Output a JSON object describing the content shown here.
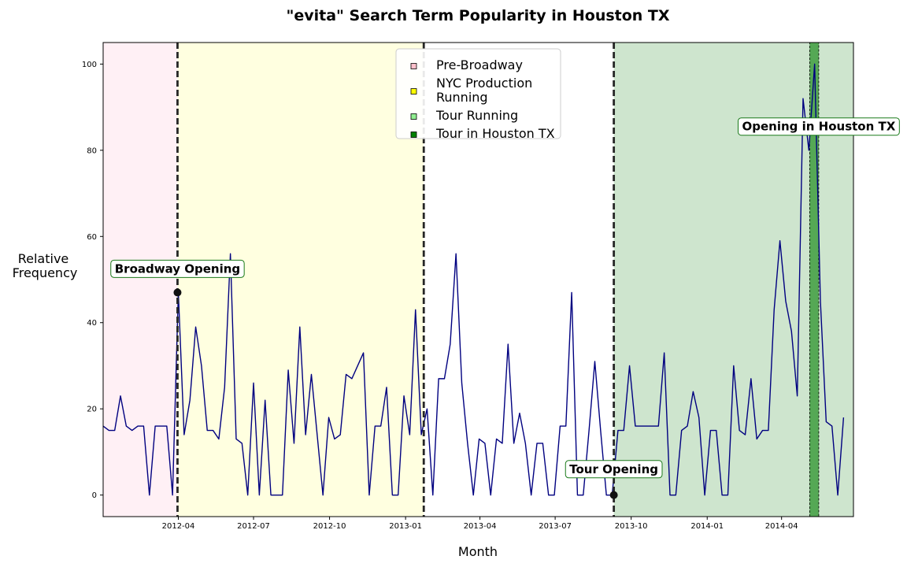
{
  "chart_data": {
    "type": "line",
    "title": "\"evita\" Search Term Popularity in Houston TX",
    "xlabel": "Month",
    "ylabel": [
      "Relative",
      "Frequency"
    ],
    "ylim": [
      -5,
      105
    ],
    "xlim": [
      "2012-01-01",
      "2014-06-27"
    ],
    "yticks": [
      0,
      20,
      40,
      60,
      80,
      100
    ],
    "xticks": [
      {
        "date": "2012-04-01",
        "label": "2012-04"
      },
      {
        "date": "2012-07-01",
        "label": "2012-07"
      },
      {
        "date": "2012-10-01",
        "label": "2012-10"
      },
      {
        "date": "2013-01-01",
        "label": "2013-01"
      },
      {
        "date": "2013-04-01",
        "label": "2013-04"
      },
      {
        "date": "2013-07-01",
        "label": "2013-07"
      },
      {
        "date": "2013-10-01",
        "label": "2013-10"
      },
      {
        "date": "2014-01-01",
        "label": "2014-01"
      },
      {
        "date": "2014-04-01",
        "label": "2014-04"
      }
    ],
    "line_color": "#000080",
    "series": [
      {
        "values": [
          [
            "2012-01-01",
            16
          ],
          [
            "2012-01-08",
            15
          ],
          [
            "2012-01-15",
            15
          ],
          [
            "2012-01-22",
            23
          ],
          [
            "2012-01-29",
            16
          ],
          [
            "2012-02-05",
            15
          ],
          [
            "2012-02-12",
            16
          ],
          [
            "2012-02-19",
            16
          ],
          [
            "2012-02-26",
            0
          ],
          [
            "2012-03-04",
            16
          ],
          [
            "2012-03-11",
            16
          ],
          [
            "2012-03-18",
            16
          ],
          [
            "2012-03-25",
            0
          ],
          [
            "2012-04-01",
            47
          ],
          [
            "2012-04-08",
            14
          ],
          [
            "2012-04-15",
            22
          ],
          [
            "2012-04-22",
            39
          ],
          [
            "2012-04-29",
            30
          ],
          [
            "2012-05-06",
            15
          ],
          [
            "2012-05-13",
            15
          ],
          [
            "2012-05-20",
            13
          ],
          [
            "2012-05-27",
            25
          ],
          [
            "2012-06-03",
            56
          ],
          [
            "2012-06-10",
            13
          ],
          [
            "2012-06-17",
            12
          ],
          [
            "2012-06-24",
            0
          ],
          [
            "2012-07-01",
            26
          ],
          [
            "2012-07-08",
            0
          ],
          [
            "2012-07-15",
            22
          ],
          [
            "2012-07-22",
            0
          ],
          [
            "2012-07-29",
            0
          ],
          [
            "2012-08-05",
            0
          ],
          [
            "2012-08-12",
            29
          ],
          [
            "2012-08-19",
            12
          ],
          [
            "2012-08-26",
            39
          ],
          [
            "2012-09-02",
            14
          ],
          [
            "2012-09-09",
            28
          ],
          [
            "2012-09-16",
            14
          ],
          [
            "2012-09-23",
            0
          ],
          [
            "2012-09-30",
            18
          ],
          [
            "2012-10-07",
            13
          ],
          [
            "2012-10-14",
            14
          ],
          [
            "2012-10-21",
            28
          ],
          [
            "2012-10-28",
            27
          ],
          [
            "2012-11-04",
            30
          ],
          [
            "2012-11-11",
            33
          ],
          [
            "2012-11-18",
            0
          ],
          [
            "2012-11-25",
            16
          ],
          [
            "2012-12-02",
            16
          ],
          [
            "2012-12-09",
            25
          ],
          [
            "2012-12-16",
            0
          ],
          [
            "2012-12-23",
            0
          ],
          [
            "2012-12-30",
            23
          ],
          [
            "2013-01-06",
            14
          ],
          [
            "2013-01-13",
            43
          ],
          [
            "2013-01-20",
            14
          ],
          [
            "2013-01-27",
            20
          ],
          [
            "2013-02-03",
            0
          ],
          [
            "2013-02-10",
            27
          ],
          [
            "2013-02-17",
            27
          ],
          [
            "2013-02-24",
            35
          ],
          [
            "2013-03-03",
            56
          ],
          [
            "2013-03-10",
            26
          ],
          [
            "2013-03-17",
            12
          ],
          [
            "2013-03-24",
            0
          ],
          [
            "2013-03-31",
            13
          ],
          [
            "2013-04-07",
            12
          ],
          [
            "2013-04-14",
            0
          ],
          [
            "2013-04-21",
            13
          ],
          [
            "2013-04-28",
            12
          ],
          [
            "2013-05-05",
            35
          ],
          [
            "2013-05-12",
            12
          ],
          [
            "2013-05-19",
            19
          ],
          [
            "2013-05-26",
            12
          ],
          [
            "2013-06-02",
            0
          ],
          [
            "2013-06-09",
            12
          ],
          [
            "2013-06-16",
            12
          ],
          [
            "2013-06-23",
            0
          ],
          [
            "2013-06-30",
            0
          ],
          [
            "2013-07-07",
            16
          ],
          [
            "2013-07-14",
            16
          ],
          [
            "2013-07-21",
            47
          ],
          [
            "2013-07-28",
            0
          ],
          [
            "2013-08-04",
            0
          ],
          [
            "2013-08-11",
            15
          ],
          [
            "2013-08-18",
            31
          ],
          [
            "2013-08-25",
            15
          ],
          [
            "2013-09-01",
            0
          ],
          [
            "2013-09-08",
            0
          ],
          [
            "2013-09-15",
            15
          ],
          [
            "2013-09-22",
            15
          ],
          [
            "2013-09-29",
            30
          ],
          [
            "2013-10-06",
            16
          ],
          [
            "2013-10-13",
            16
          ],
          [
            "2013-10-20",
            16
          ],
          [
            "2013-10-27",
            16
          ],
          [
            "2013-11-03",
            16
          ],
          [
            "2013-11-10",
            33
          ],
          [
            "2013-11-17",
            0
          ],
          [
            "2013-11-24",
            0
          ],
          [
            "2013-12-01",
            15
          ],
          [
            "2013-12-08",
            16
          ],
          [
            "2013-12-15",
            24
          ],
          [
            "2013-12-22",
            18
          ],
          [
            "2013-12-29",
            0
          ],
          [
            "2014-01-05",
            15
          ],
          [
            "2014-01-12",
            15
          ],
          [
            "2014-01-19",
            0
          ],
          [
            "2014-01-26",
            0
          ],
          [
            "2014-02-02",
            30
          ],
          [
            "2014-02-09",
            15
          ],
          [
            "2014-02-16",
            14
          ],
          [
            "2014-02-23",
            27
          ],
          [
            "2014-03-02",
            13
          ],
          [
            "2014-03-09",
            15
          ],
          [
            "2014-03-16",
            15
          ],
          [
            "2014-03-23",
            43
          ],
          [
            "2014-03-30",
            59
          ],
          [
            "2014-04-06",
            45
          ],
          [
            "2014-04-13",
            38
          ],
          [
            "2014-04-20",
            23
          ],
          [
            "2014-04-27",
            92
          ],
          [
            "2014-05-04",
            80
          ],
          [
            "2014-05-11",
            100
          ],
          [
            "2014-05-18",
            45
          ],
          [
            "2014-05-25",
            17
          ],
          [
            "2014-06-01",
            16
          ],
          [
            "2014-06-08",
            0
          ],
          [
            "2014-06-15",
            18
          ]
        ]
      }
    ],
    "spans": [
      {
        "label": "Pre-Broadway",
        "start": "2012-01-01",
        "end": "2012-03-31",
        "color": "#fff0f5"
      },
      {
        "label": "NYC Production Running",
        "start": "2012-03-31",
        "end": "2013-01-23",
        "color": "#ffffe0"
      },
      {
        "label": "Tour Running",
        "start": "2013-09-10",
        "end": "2014-06-27",
        "color": "#cee5ce"
      },
      {
        "label": "Tour in Houston TX",
        "start": "2014-05-05",
        "end": "2014-05-16",
        "color": "#55a855"
      }
    ],
    "vlines": [
      "2012-03-31",
      "2013-01-23",
      "2013-09-10"
    ],
    "markers": [
      {
        "date": "2012-03-31",
        "value": 47
      },
      {
        "date": "2013-09-10",
        "value": 0
      }
    ],
    "annotations": [
      {
        "text": "Broadway Opening",
        "date": "2012-03-31",
        "value": 52.5
      },
      {
        "text": "Tour Opening",
        "date": "2013-09-10",
        "value": 6
      },
      {
        "text": "Opening in Houston TX",
        "date": "2014-05-16",
        "value": 85.5
      }
    ],
    "legend": {
      "position": "top-center",
      "entries": [
        {
          "label_lines": [
            "Pre-Broadway"
          ],
          "color": "#ffc0cb"
        },
        {
          "label_lines": [
            "NYC Production",
            "Running"
          ],
          "color": "#ffff00"
        },
        {
          "label_lines": [
            "Tour Running"
          ],
          "color": "#90ee90"
        },
        {
          "label_lines": [
            "Tour in Houston TX"
          ],
          "color": "#008000"
        }
      ]
    }
  }
}
